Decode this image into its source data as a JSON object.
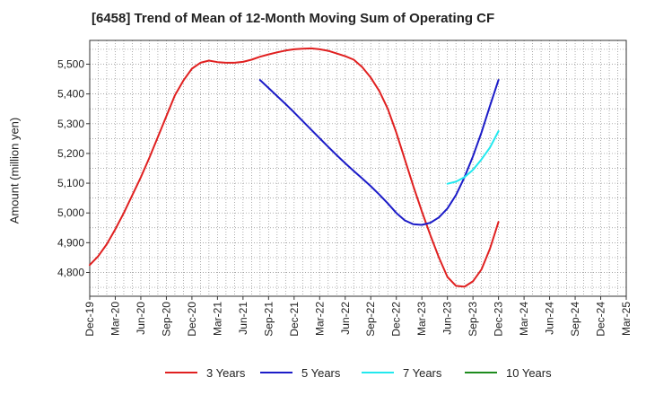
{
  "chart_data": {
    "type": "line",
    "title": "[6458]  Trend of Mean of 12-Month Moving Sum of Operating CF",
    "xlabel": "",
    "ylabel": "Amount (million yen)",
    "ylim": [
      4720,
      5580
    ],
    "yticks": [
      4800,
      4900,
      5000,
      5100,
      5200,
      5300,
      5400,
      5500
    ],
    "ytick_labels": [
      "4,800",
      "4,900",
      "5,000",
      "5,100",
      "5,200",
      "5,300",
      "5,400",
      "5,500"
    ],
    "x_range_months": [
      0,
      63
    ],
    "xtick_labels": [
      "Dec-19",
      "Mar-20",
      "Jun-20",
      "Sep-20",
      "Dec-20",
      "Mar-21",
      "Jun-21",
      "Sep-21",
      "Dec-21",
      "Mar-22",
      "Jun-22",
      "Sep-22",
      "Dec-22",
      "Mar-23",
      "Jun-23",
      "Sep-23",
      "Dec-23",
      "Mar-24",
      "Jun-24",
      "Sep-24",
      "Dec-24",
      "Mar-25"
    ],
    "grid": true,
    "legend_position": "bottom",
    "series": [
      {
        "name": "3 Years",
        "color": "#e02020",
        "x": [
          0,
          1,
          2,
          3,
          4,
          5,
          6,
          7,
          8,
          9,
          10,
          11,
          12,
          13,
          14,
          15,
          16,
          17,
          18,
          19,
          20,
          21,
          22,
          23,
          24,
          25,
          26,
          27,
          28,
          29,
          30,
          31,
          32,
          33,
          34,
          35,
          36,
          37,
          38,
          39,
          40,
          41,
          42,
          43,
          44,
          45,
          46,
          47,
          48,
          49,
          50
        ],
        "values": [
          4825,
          4855,
          4895,
          4945,
          5000,
          5060,
          5120,
          5185,
          5255,
          5325,
          5395,
          5445,
          5485,
          5505,
          5512,
          5507,
          5505,
          5505,
          5508,
          5515,
          5525,
          5533,
          5540,
          5546,
          5550,
          5552,
          5553,
          5550,
          5545,
          5536,
          5527,
          5515,
          5490,
          5455,
          5410,
          5350,
          5270,
          5180,
          5090,
          5005,
          4925,
          4850,
          4785,
          4755,
          4752,
          4770,
          4810,
          4880,
          4970,
          null,
          null
        ]
      },
      {
        "name": "5 Years",
        "color": "#1c1cc8",
        "x": [
          20,
          21,
          22,
          23,
          24,
          25,
          26,
          27,
          28,
          29,
          30,
          31,
          32,
          33,
          34,
          35,
          36,
          37,
          38,
          39,
          40,
          41,
          42,
          43,
          44,
          45,
          46,
          47,
          48
        ],
        "values": [
          5447,
          5420,
          5393,
          5366,
          5338,
          5309,
          5280,
          5251,
          5222,
          5194,
          5167,
          5141,
          5116,
          5090,
          5062,
          5032,
          5000,
          4975,
          4962,
          4960,
          4967,
          4985,
          5015,
          5060,
          5120,
          5190,
          5270,
          5360,
          5447
        ]
      },
      {
        "name": "7 Years",
        "color": "#22e8ee",
        "x": [
          42,
          43,
          44,
          45,
          46,
          47,
          48
        ],
        "values": [
          5098,
          5105,
          5120,
          5145,
          5180,
          5220,
          5275
        ]
      },
      {
        "name": "10 Years",
        "color": "#1e8c1e",
        "x": [],
        "values": []
      }
    ]
  }
}
